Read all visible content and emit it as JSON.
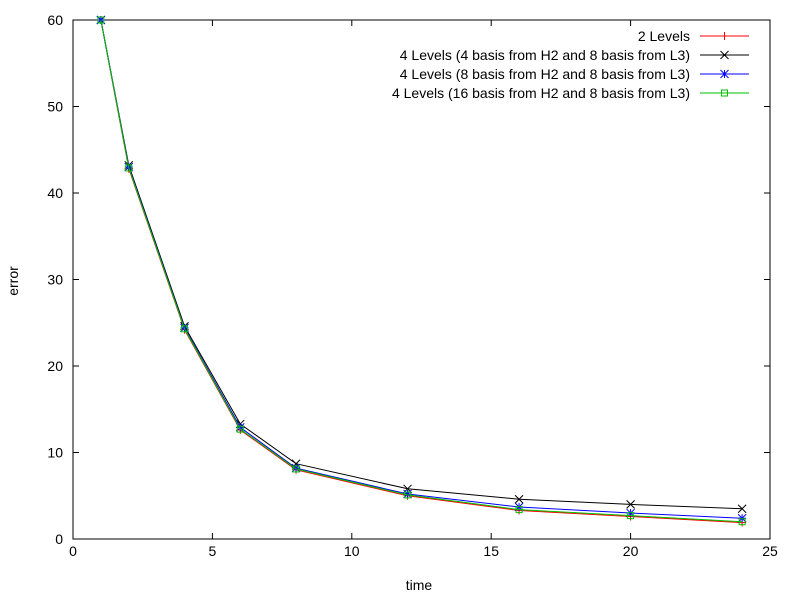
{
  "chart_data": {
    "type": "line",
    "title": "",
    "xlabel": "time",
    "ylabel": "error",
    "xlim": [
      0,
      25
    ],
    "ylim": [
      0,
      60
    ],
    "x_ticks": [
      0,
      5,
      10,
      15,
      20,
      25
    ],
    "y_ticks": [
      0,
      10,
      20,
      30,
      40,
      50,
      60
    ],
    "grid": false,
    "legend_position": "top-right",
    "x": [
      1,
      2,
      4,
      6,
      8,
      12,
      16,
      20,
      24
    ],
    "series": [
      {
        "name": "2 Levels",
        "color": "#ff0000",
        "marker": "plus",
        "values": [
          60.0,
          42.8,
          24.2,
          12.6,
          8.0,
          5.0,
          3.3,
          2.6,
          1.9
        ]
      },
      {
        "name": "4 Levels (4 basis from H2 and 8 basis from L3)",
        "color": "#000000",
        "marker": "cross",
        "values": [
          60.0,
          43.2,
          24.6,
          13.3,
          8.7,
          5.8,
          4.6,
          4.0,
          3.5
        ]
      },
      {
        "name": "4 Levels (8 basis from H2 and 8 basis from L3)",
        "color": "#0000ff",
        "marker": "star",
        "values": [
          60.0,
          43.0,
          24.4,
          12.9,
          8.2,
          5.2,
          3.7,
          3.0,
          2.4
        ]
      },
      {
        "name": "4 Levels (16 basis from H2 and 8 basis from L3)",
        "color": "#00c000",
        "marker": "square",
        "values": [
          60.0,
          42.9,
          24.3,
          12.7,
          8.1,
          5.1,
          3.4,
          2.7,
          2.0
        ]
      }
    ]
  }
}
